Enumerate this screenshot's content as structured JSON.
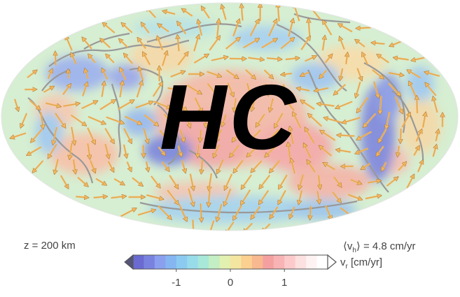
{
  "overlay_title": "HC",
  "depth_label": "z = 200 km",
  "mean_velocity": {
    "prefix": "⟨v",
    "sub": "h",
    "suffix": "⟩ = 4.8 cm/yr"
  },
  "colorbar": {
    "quantity": "v",
    "quantity_sub": "r",
    "unit": " [cm/yr]",
    "range": [
      -1.8,
      1.8
    ],
    "ticks": [
      {
        "label": "-1",
        "value": -1
      },
      {
        "label": "0",
        "value": 0
      },
      {
        "label": "1",
        "value": 1
      }
    ],
    "colors": [
      "#6a6ad0",
      "#7a82e0",
      "#8aa0ee",
      "#86b6f2",
      "#8ccaf2",
      "#98dcea",
      "#a8e8d8",
      "#c4eec4",
      "#e2f0b0",
      "#f4e6a0",
      "#fbd090",
      "#f8b890",
      "#f4a0a0",
      "#f8b4b4",
      "#fccaca",
      "#fde0e0",
      "#fff2f2",
      "#ffffff"
    ]
  },
  "colors": {
    "arrow": "#f4b860",
    "arrow_stroke": "#b07a30",
    "coastline": "#999999",
    "background": "#ffffff"
  }
}
